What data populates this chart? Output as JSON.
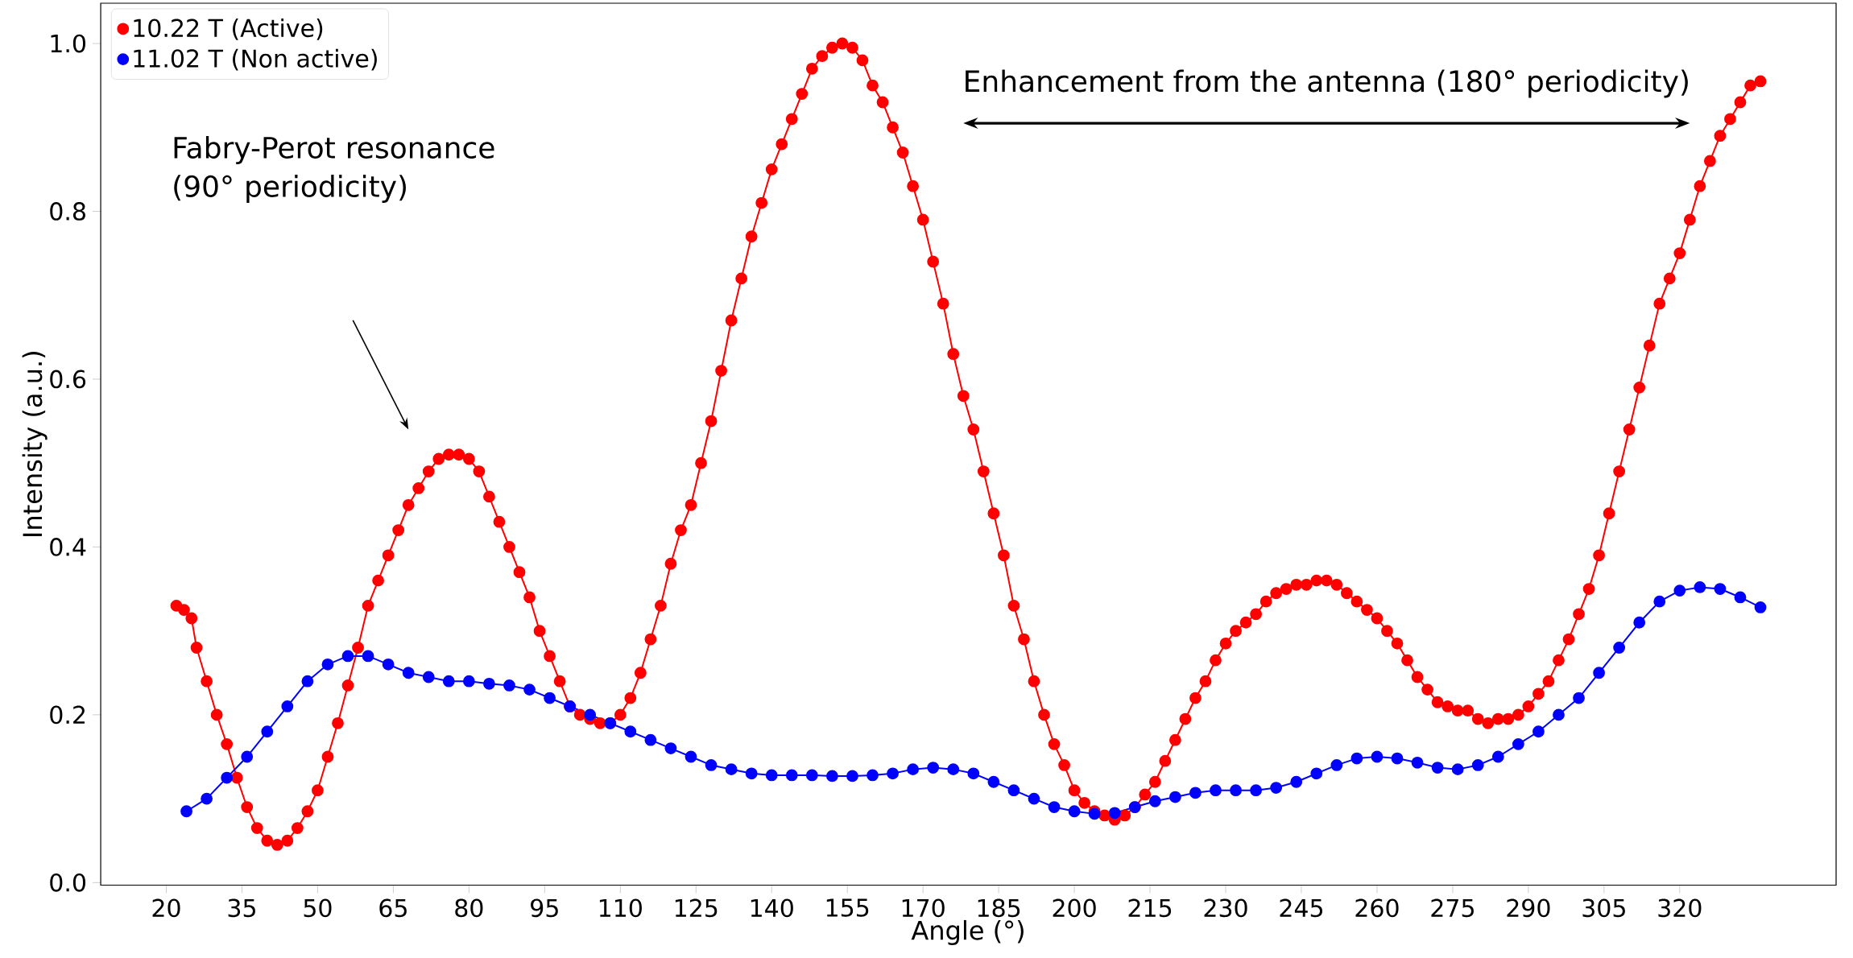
{
  "chart_data": {
    "type": "line",
    "xlabel": "Angle (°)",
    "ylabel": "Intensity (a.u.)",
    "xlim": [
      7,
      351
    ],
    "ylim": [
      -0.003,
      1.048
    ],
    "xticks": [
      20,
      35,
      50,
      65,
      80,
      95,
      110,
      125,
      140,
      155,
      170,
      185,
      200,
      215,
      230,
      245,
      260,
      275,
      290,
      305,
      320
    ],
    "yticks": [
      {
        "value": 0,
        "label": "0.0"
      },
      {
        "value": 0.2,
        "label": "0.2"
      },
      {
        "value": 0.4,
        "label": "0.4"
      },
      {
        "value": 0.6,
        "label": "0.6"
      },
      {
        "value": 0.8,
        "label": "0.8"
      },
      {
        "value": 1,
        "label": "1.0"
      }
    ],
    "legend": "top left",
    "marker": "circle",
    "line_style": "solid",
    "annotations": [
      "Fabry-Perot resonance (90° periodicity)",
      "Enhancement from the antenna (180° periodicity)"
    ],
    "series": [
      {
        "name": "10.22 T (Active)",
        "color": "#ff0000",
        "x": [
          22,
          23.5,
          25,
          26,
          28,
          30,
          32,
          34,
          36,
          38,
          40,
          42,
          44,
          46,
          48,
          50,
          52,
          54,
          56,
          58,
          60,
          62,
          64,
          66,
          68,
          70,
          72,
          74,
          76,
          78,
          80,
          82,
          84,
          86,
          88,
          90,
          92,
          94,
          96,
          98,
          100,
          102,
          104,
          106,
          108,
          110,
          112,
          114,
          116,
          118,
          120,
          122,
          124,
          126,
          128,
          130,
          132,
          134,
          136,
          138,
          140,
          142,
          144,
          146,
          148,
          150,
          152,
          154,
          156,
          158,
          160,
          162,
          164,
          166,
          168,
          170,
          172,
          174,
          176,
          178,
          180,
          182,
          184,
          186,
          188,
          190,
          192,
          194,
          196,
          198,
          200,
          202,
          204,
          206,
          208,
          210,
          212,
          214,
          216,
          218,
          220,
          222,
          224,
          226,
          228,
          230,
          232,
          234,
          236,
          238,
          240,
          242,
          244,
          246,
          248,
          250,
          252,
          254,
          256,
          258,
          260,
          262,
          264,
          266,
          268,
          270,
          272,
          274,
          276,
          278,
          280,
          282,
          284,
          286,
          288,
          290,
          292,
          294,
          296,
          298,
          300,
          302,
          304,
          306,
          308,
          310,
          312,
          314,
          316,
          318,
          320,
          322,
          324,
          326,
          328,
          330,
          332,
          334,
          336
        ],
        "values": [
          0.33,
          0.325,
          0.315,
          0.28,
          0.24,
          0.2,
          0.165,
          0.125,
          0.09,
          0.065,
          0.05,
          0.045,
          0.05,
          0.065,
          0.085,
          0.11,
          0.15,
          0.19,
          0.235,
          0.28,
          0.33,
          0.36,
          0.39,
          0.42,
          0.45,
          0.47,
          0.49,
          0.505,
          0.51,
          0.51,
          0.505,
          0.49,
          0.46,
          0.43,
          0.4,
          0.37,
          0.34,
          0.3,
          0.27,
          0.24,
          0.21,
          0.2,
          0.195,
          0.19,
          0.19,
          0.2,
          0.22,
          0.25,
          0.29,
          0.33,
          0.38,
          0.42,
          0.45,
          0.5,
          0.55,
          0.61,
          0.67,
          0.72,
          0.77,
          0.81,
          0.85,
          0.88,
          0.91,
          0.94,
          0.97,
          0.985,
          0.995,
          1.0,
          0.995,
          0.98,
          0.95,
          0.93,
          0.9,
          0.87,
          0.83,
          0.79,
          0.74,
          0.69,
          0.63,
          0.58,
          0.54,
          0.49,
          0.44,
          0.39,
          0.33,
          0.29,
          0.24,
          0.2,
          0.165,
          0.14,
          0.11,
          0.095,
          0.085,
          0.08,
          0.075,
          0.08,
          0.09,
          0.105,
          0.12,
          0.145,
          0.17,
          0.195,
          0.22,
          0.24,
          0.265,
          0.285,
          0.3,
          0.31,
          0.32,
          0.335,
          0.345,
          0.35,
          0.355,
          0.355,
          0.36,
          0.36,
          0.355,
          0.345,
          0.335,
          0.325,
          0.315,
          0.3,
          0.285,
          0.265,
          0.245,
          0.23,
          0.215,
          0.21,
          0.205,
          0.205,
          0.195,
          0.19,
          0.195,
          0.195,
          0.2,
          0.21,
          0.225,
          0.24,
          0.265,
          0.29,
          0.32,
          0.35,
          0.39,
          0.44,
          0.49,
          0.54,
          0.59,
          0.64,
          0.69,
          0.72,
          0.75,
          0.79,
          0.83,
          0.86,
          0.89,
          0.91,
          0.93,
          0.95,
          0.955
        ]
      },
      {
        "name": "11.02 T (Non active)",
        "color": "#0000ff",
        "x": [
          24,
          28,
          32,
          36,
          40,
          44,
          48,
          52,
          56,
          60,
          64,
          68,
          72,
          76,
          80,
          84,
          88,
          92,
          96,
          100,
          104,
          108,
          112,
          116,
          120,
          124,
          128,
          132,
          136,
          140,
          144,
          148,
          152,
          156,
          160,
          164,
          168,
          172,
          176,
          180,
          184,
          188,
          192,
          196,
          200,
          204,
          208,
          212,
          216,
          220,
          224,
          228,
          232,
          236,
          240,
          244,
          248,
          252,
          256,
          260,
          264,
          268,
          272,
          276,
          280,
          284,
          288,
          292,
          296,
          300,
          304,
          308,
          312,
          316,
          320,
          324,
          328,
          332,
          336
        ],
        "values": [
          0.085,
          0.1,
          0.125,
          0.15,
          0.18,
          0.21,
          0.24,
          0.26,
          0.27,
          0.27,
          0.26,
          0.25,
          0.245,
          0.24,
          0.24,
          0.237,
          0.235,
          0.23,
          0.22,
          0.21,
          0.2,
          0.19,
          0.18,
          0.17,
          0.16,
          0.15,
          0.14,
          0.135,
          0.13,
          0.128,
          0.128,
          0.128,
          0.127,
          0.127,
          0.128,
          0.13,
          0.135,
          0.137,
          0.135,
          0.13,
          0.12,
          0.11,
          0.1,
          0.09,
          0.085,
          0.082,
          0.083,
          0.09,
          0.097,
          0.102,
          0.107,
          0.11,
          0.11,
          0.11,
          0.113,
          0.12,
          0.13,
          0.14,
          0.148,
          0.15,
          0.148,
          0.143,
          0.137,
          0.135,
          0.14,
          0.15,
          0.165,
          0.18,
          0.2,
          0.22,
          0.25,
          0.28,
          0.31,
          0.335,
          0.348,
          0.352,
          0.35,
          0.34,
          0.328
        ]
      }
    ]
  }
}
